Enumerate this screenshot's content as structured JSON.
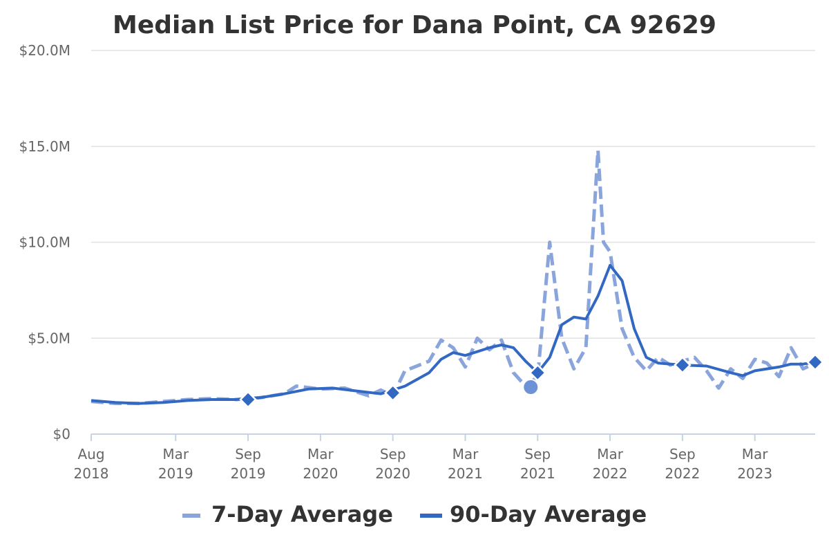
{
  "chart_data": {
    "type": "line",
    "title": "Median List Price for Dana Point, CA 92629",
    "xlabel": "",
    "ylabel": "",
    "ylim": [
      0,
      20000000
    ],
    "xlim": [
      "2018-08",
      "2023-08"
    ],
    "grid": true,
    "legend_position": "bottom",
    "y_ticks": [
      {
        "value": 0,
        "label": "$0"
      },
      {
        "value": 5000000,
        "label": "$5.0M"
      },
      {
        "value": 10000000,
        "label": "$10.0M"
      },
      {
        "value": 15000000,
        "label": "$15.0M"
      },
      {
        "value": 20000000,
        "label": "$20.0M"
      }
    ],
    "x_ticks": [
      {
        "value": "2018-08",
        "month": "Aug",
        "year": "2018"
      },
      {
        "value": "2019-03",
        "month": "Mar",
        "year": "2019"
      },
      {
        "value": "2019-09",
        "month": "Sep",
        "year": "2019"
      },
      {
        "value": "2020-03",
        "month": "Mar",
        "year": "2020"
      },
      {
        "value": "2020-09",
        "month": "Sep",
        "year": "2020"
      },
      {
        "value": "2021-03",
        "month": "Mar",
        "year": "2021"
      },
      {
        "value": "2021-09",
        "month": "Sep",
        "year": "2021"
      },
      {
        "value": "2022-03",
        "month": "Mar",
        "year": "2022"
      },
      {
        "value": "2022-09",
        "month": "Sep",
        "year": "2022"
      },
      {
        "value": "2023-03",
        "month": "Mar",
        "year": "2023"
      }
    ],
    "series": [
      {
        "name": "7-Day Average",
        "color": "#8aa5dc",
        "style": "dashed",
        "points": [
          [
            "2018-08",
            1.7
          ],
          [
            "2018-10",
            1.6
          ],
          [
            "2018-12",
            1.6
          ],
          [
            "2019-02",
            1.7
          ],
          [
            "2019-04",
            1.8
          ],
          [
            "2019-06",
            1.85
          ],
          [
            "2019-08",
            1.8
          ],
          [
            "2019-10",
            1.9
          ],
          [
            "2019-12",
            2.1
          ],
          [
            "2020-01",
            2.5
          ],
          [
            "2020-03",
            2.35
          ],
          [
            "2020-05",
            2.4
          ],
          [
            "2020-07",
            2.0
          ],
          [
            "2020-08",
            2.3
          ],
          [
            "2020-09",
            2.0
          ],
          [
            "2020-10",
            3.3
          ],
          [
            "2020-12",
            3.8
          ],
          [
            "2021-01",
            4.9
          ],
          [
            "2021-02",
            4.5
          ],
          [
            "2021-03",
            3.5
          ],
          [
            "2021-04",
            5.0
          ],
          [
            "2021-05",
            4.4
          ],
          [
            "2021-06",
            4.9
          ],
          [
            "2021-07",
            3.2
          ],
          [
            "2021-08",
            2.5
          ],
          [
            "2021-09",
            3.0
          ],
          [
            "2021-10",
            10.0
          ],
          [
            "2021-11",
            5.0
          ],
          [
            "2021-12",
            3.4
          ],
          [
            "2022-01",
            4.5
          ],
          [
            "2022-02",
            14.8
          ],
          [
            "2022-02",
            10.0
          ],
          [
            "2022-03",
            9.5
          ],
          [
            "2022-04",
            5.5
          ],
          [
            "2022-05",
            4.0
          ],
          [
            "2022-06",
            3.3
          ],
          [
            "2022-07",
            4.0
          ],
          [
            "2022-08",
            3.6
          ],
          [
            "2022-10",
            4.0
          ],
          [
            "2022-11",
            3.3
          ],
          [
            "2022-12",
            2.4
          ],
          [
            "2023-01",
            3.4
          ],
          [
            "2023-02",
            2.9
          ],
          [
            "2023-03",
            3.9
          ],
          [
            "2023-04",
            3.7
          ],
          [
            "2023-05",
            3.0
          ],
          [
            "2023-06",
            4.5
          ],
          [
            "2023-07",
            3.4
          ],
          [
            "2023-08",
            3.7
          ]
        ]
      },
      {
        "name": "90-Day Average",
        "color": "#3268c2",
        "style": "solid",
        "points": [
          [
            "2018-08",
            1.75
          ],
          [
            "2018-10",
            1.65
          ],
          [
            "2018-12",
            1.6
          ],
          [
            "2019-02",
            1.65
          ],
          [
            "2019-04",
            1.75
          ],
          [
            "2019-06",
            1.8
          ],
          [
            "2019-08",
            1.8
          ],
          [
            "2019-10",
            1.9
          ],
          [
            "2019-12",
            2.1
          ],
          [
            "2020-02",
            2.35
          ],
          [
            "2020-04",
            2.4
          ],
          [
            "2020-06",
            2.25
          ],
          [
            "2020-08",
            2.1
          ],
          [
            "2020-10",
            2.5
          ],
          [
            "2020-12",
            3.2
          ],
          [
            "2021-01",
            3.9
          ],
          [
            "2021-02",
            4.25
          ],
          [
            "2021-03",
            4.1
          ],
          [
            "2021-05",
            4.5
          ],
          [
            "2021-06",
            4.65
          ],
          [
            "2021-07",
            4.5
          ],
          [
            "2021-08",
            3.8
          ],
          [
            "2021-09",
            3.2
          ],
          [
            "2021-10",
            4.0
          ],
          [
            "2021-11",
            5.7
          ],
          [
            "2021-12",
            6.1
          ],
          [
            "2022-01",
            6.0
          ],
          [
            "2022-02",
            7.2
          ],
          [
            "2022-03",
            8.8
          ],
          [
            "2022-04",
            8.0
          ],
          [
            "2022-05",
            5.5
          ],
          [
            "2022-06",
            4.0
          ],
          [
            "2022-07",
            3.7
          ],
          [
            "2022-09",
            3.6
          ],
          [
            "2022-11",
            3.55
          ],
          [
            "2023-01",
            3.2
          ],
          [
            "2023-02",
            3.05
          ],
          [
            "2023-03",
            3.3
          ],
          [
            "2023-05",
            3.5
          ],
          [
            "2023-06",
            3.65
          ],
          [
            "2023-07",
            3.65
          ],
          [
            "2023-08",
            3.75
          ]
        ]
      }
    ],
    "markers": [
      {
        "date": "2019-09",
        "value": 1.8
      },
      {
        "date": "2020-09",
        "value": 2.15
      },
      {
        "date": "2021-09",
        "value": 3.2
      },
      {
        "date": "2022-09",
        "value": 3.6
      },
      {
        "date": "2023-08",
        "value": 3.75
      }
    ],
    "highlight_point": {
      "date": "2021-09",
      "value": 2.45
    }
  }
}
